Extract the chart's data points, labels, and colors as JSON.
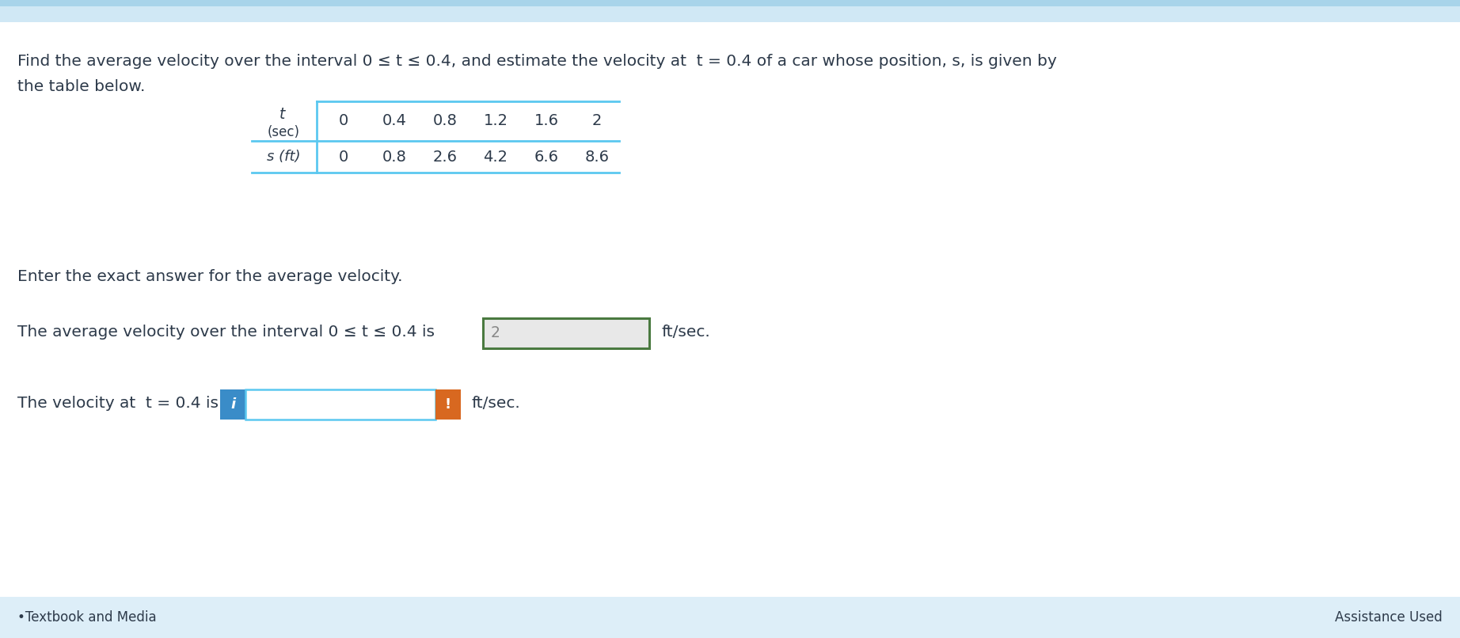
{
  "bg_color": "#eaf4fb",
  "white": "#ffffff",
  "header_bar_color": "#a8d4ea",
  "text_color": "#2d3a4a",
  "problem_text_line1": "Find the average velocity over the interval 0 ≤ t ≤ 0.4, and estimate the velocity at  t = 0.4 of a car whose position, s, is given by",
  "problem_text_line2": "the table below.",
  "t_values": [
    "0",
    "0.4",
    "0.8",
    "1.2",
    "1.6",
    "2"
  ],
  "s_values": [
    "0",
    "0.8",
    "2.6",
    "4.2",
    "6.6",
    "8.6"
  ],
  "enter_text": "Enter the exact answer for the average velocity.",
  "avg_vel_text_before": "The average velocity over the interval 0 ≤ t ≤ 0.4 is",
  "avg_vel_answer": "2",
  "avg_vel_text_after": "ft/sec.",
  "vel_text_before": "The velocity at  t = 0.4 is",
  "vel_text_after": "ft/sec.",
  "table_line_color": "#5bc8f0",
  "input_box_border_color_green": "#4a7a40",
  "input_box_border_color_blue": "#5bc8f0",
  "blue_btn_color": "#3a8cc8",
  "orange_btn_color": "#d86820",
  "bottom_bar_color": "#ddeef8",
  "footer_text_left": "•Textbook and Media",
  "footer_text_right": "Assistance Used",
  "fig_width": 18.44,
  "fig_height": 8.06,
  "dpi": 100
}
